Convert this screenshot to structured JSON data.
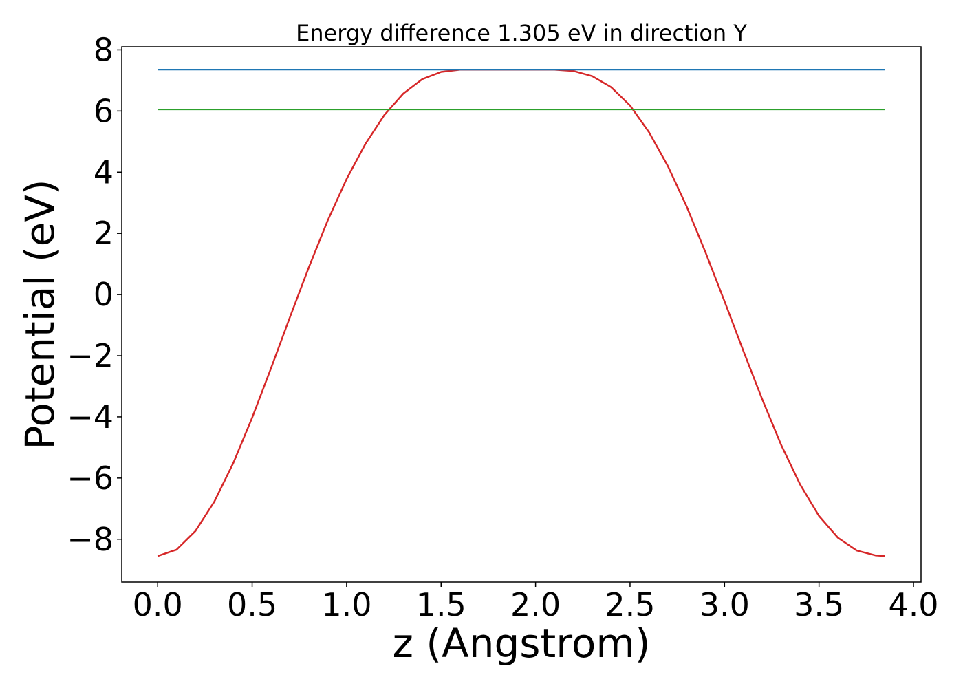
{
  "chart_data": {
    "type": "line",
    "title": "Energy difference 1.305 eV in direction Y",
    "xlabel": "z (Angstrom)",
    "ylabel": "Potential (eV)",
    "xlim": [
      -0.19,
      4.04
    ],
    "ylim": [
      -9.4,
      8.1
    ],
    "xticks": [
      0.0,
      0.5,
      1.0,
      1.5,
      2.0,
      2.5,
      3.0,
      3.5,
      4.0
    ],
    "xtick_labels": [
      "0.0",
      "0.5",
      "1.0",
      "1.5",
      "2.0",
      "2.5",
      "3.0",
      "3.5",
      "4.0"
    ],
    "yticks": [
      -8,
      -6,
      -4,
      -2,
      0,
      2,
      4,
      6,
      8
    ],
    "ytick_labels": [
      "−8",
      "−6",
      "−4",
      "−2",
      "0",
      "2",
      "4",
      "6",
      "8"
    ],
    "grid": false,
    "legend": "none",
    "series": [
      {
        "color": "#d62728",
        "x": [
          0.0,
          0.1,
          0.2,
          0.3,
          0.4,
          0.5,
          0.6,
          0.7,
          0.8,
          0.9,
          1.0,
          1.1,
          1.2,
          1.3,
          1.4,
          1.5,
          1.6,
          1.7,
          1.8,
          1.9,
          1.95,
          2.0,
          2.1,
          2.2,
          2.3,
          2.4,
          2.5,
          2.6,
          2.7,
          2.8,
          2.9,
          3.0,
          3.1,
          3.2,
          3.3,
          3.4,
          3.5,
          3.6,
          3.7,
          3.8,
          3.85
        ],
        "y": [
          -8.55,
          -8.34,
          -7.73,
          -6.77,
          -5.51,
          -4.03,
          -2.41,
          -0.74,
          0.89,
          2.42,
          3.78,
          4.93,
          5.87,
          6.57,
          7.04,
          7.28,
          7.35,
          7.35,
          7.35,
          7.35,
          7.35,
          7.35,
          7.35,
          7.31,
          7.14,
          6.78,
          6.18,
          5.31,
          4.2,
          2.87,
          1.37,
          -0.22,
          -1.85,
          -3.43,
          -4.92,
          -6.21,
          -7.24,
          -7.95,
          -8.37,
          -8.53,
          -8.55
        ]
      },
      {
        "color": "#1f77b4",
        "x": [
          0.0,
          3.85
        ],
        "y": [
          7.35,
          7.35
        ]
      },
      {
        "color": "#2ca02c",
        "x": [
          0.0,
          3.85
        ],
        "y": [
          6.05,
          6.05
        ]
      }
    ]
  }
}
